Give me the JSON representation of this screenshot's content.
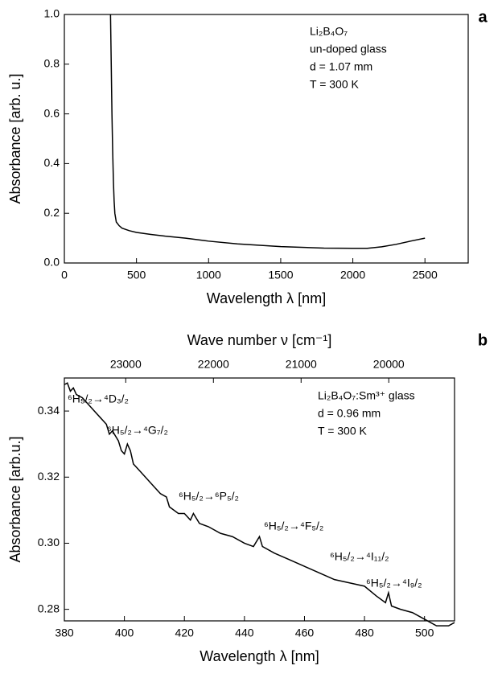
{
  "chart_data": [
    {
      "type": "line",
      "panel_label": "a",
      "xlabel": "Wavelength λ [nm]",
      "ylabel": "Absorbance [arb. u.]",
      "annotations": [
        "Li₂B₄O₇",
        "un-doped glass",
        "d = 1.07 mm",
        "T = 300 K"
      ],
      "xlim": [
        0,
        2800
      ],
      "xticks": [
        0,
        500,
        1000,
        1500,
        2000,
        2500
      ],
      "ylim": [
        0,
        1
      ],
      "yticks": [
        {
          "value": 0,
          "label": "0.0"
        },
        0.2,
        0.4,
        0.6,
        0.8,
        {
          "value": 1,
          "label": "1.0"
        }
      ],
      "x": [
        320,
        325,
        330,
        335,
        340,
        345,
        350,
        360,
        380,
        400,
        450,
        500,
        600,
        700,
        840,
        1000,
        1200,
        1500,
        1800,
        2000,
        2100,
        2200,
        2300,
        2400,
        2500
      ],
      "series": [
        {
          "color": "#000000",
          "values": [
            1.0,
            0.8,
            0.6,
            0.45,
            0.33,
            0.25,
            0.2,
            0.165,
            0.15,
            0.14,
            0.13,
            0.123,
            0.115,
            0.108,
            0.1,
            0.088,
            0.077,
            0.066,
            0.06,
            0.059,
            0.059,
            0.065,
            0.075,
            0.088,
            0.1
          ]
        }
      ]
    },
    {
      "type": "line",
      "panel_label": "b",
      "xlabel": "Wavelength λ [nm]",
      "ylabel": "Absorbance [arb.u.]",
      "x2label": "Wave number ν [cm⁻¹]",
      "annotations": [
        "Li₂B₄O₇:Sm³⁺ glass",
        "d = 0.96 mm",
        "T = 300 K"
      ],
      "transitions": [
        "⁶H₅/₂→⁴D₃/₂",
        "⁶H₅/₂→⁴G₇/₂",
        "⁶H₅/₂→⁶P₅/₂",
        "⁶H₅/₂→⁴F₅/₂",
        "⁶H₅/₂→⁴I₁₁/₂",
        "⁶H₅/₂→⁴I₉/₂"
      ],
      "xlim": [
        380,
        510
      ],
      "xticks": [
        380,
        400,
        420,
        440,
        460,
        480,
        500
      ],
      "x2lim": [
        23700,
        19250
      ],
      "x2ticks": [
        23000,
        22000,
        21000,
        20000
      ],
      "ylim": [
        0.2765,
        0.35
      ],
      "yticks": [
        0.28,
        {
          "value": 0.3,
          "label": "0.30"
        },
        0.32,
        0.34
      ],
      "x": [
        380,
        381,
        382,
        383,
        384,
        386,
        388,
        390,
        392,
        394,
        395,
        396,
        398,
        399,
        400,
        401,
        402,
        403,
        405,
        407,
        410,
        412,
        414,
        415,
        418,
        420,
        422,
        423,
        425,
        428,
        432,
        436,
        440,
        443,
        445,
        446,
        450,
        455,
        460,
        465,
        470,
        475,
        480,
        484,
        487,
        488,
        489,
        492,
        496,
        500,
        504,
        508,
        510
      ],
      "series": [
        {
          "color": "#000000",
          "values": [
            0.348,
            0.3485,
            0.346,
            0.347,
            0.345,
            0.344,
            0.342,
            0.34,
            0.338,
            0.336,
            0.333,
            0.334,
            0.331,
            0.328,
            0.327,
            0.33,
            0.328,
            0.324,
            0.322,
            0.32,
            0.317,
            0.315,
            0.314,
            0.311,
            0.309,
            0.309,
            0.307,
            0.309,
            0.306,
            0.305,
            0.303,
            0.302,
            0.3,
            0.299,
            0.302,
            0.299,
            0.297,
            0.295,
            0.293,
            0.291,
            0.289,
            0.288,
            0.287,
            0.284,
            0.282,
            0.285,
            0.281,
            0.28,
            0.279,
            0.277,
            0.275,
            0.275,
            0.276
          ]
        }
      ]
    }
  ]
}
